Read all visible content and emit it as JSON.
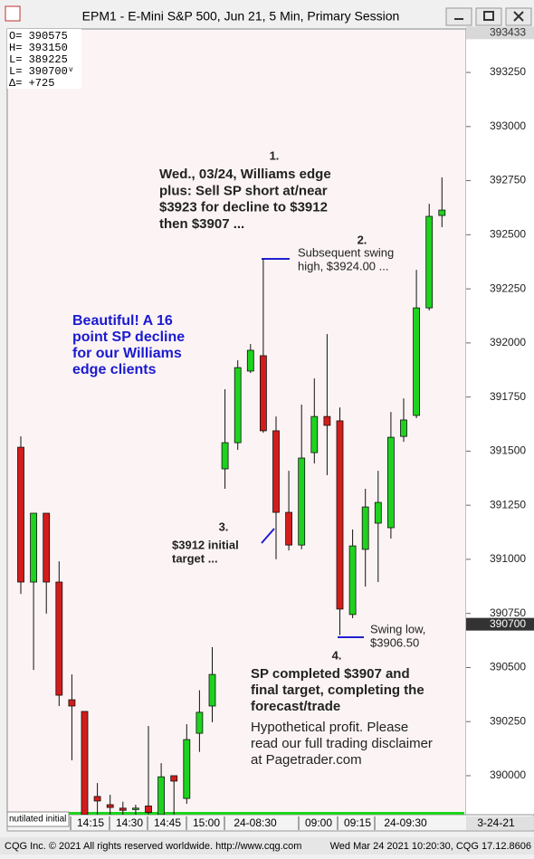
{
  "chart_data": {
    "type": "candlestick",
    "window_title": "EPM1 - E-Mini S&P 500, Jun 21, 5 Min, Primary Session",
    "readout": [
      "O= 390575",
      "H= 393150",
      "L= 389225",
      "L= 390700ᵛ",
      "Δ=     +725"
    ],
    "open": [
      391518,
      390895,
      391213,
      390895,
      390351,
      390297,
      389904,
      389866,
      389850,
      389850,
      389860,
      389820,
      390000,
      389895,
      390196,
      390322,
      391418,
      391539,
      391870,
      391941,
      391594,
      391217,
      391066,
      391493,
      391660,
      391640,
      390745,
      391046,
      391167,
      391146,
      391568,
      391665,
      392162,
      392589
    ],
    "high": [
      391568,
      391213,
      391213,
      390991,
      390468,
      390297,
      389966,
      389912,
      389880,
      389866,
      390230,
      390058,
      390000,
      390238,
      390395,
      390594,
      391786,
      391920,
      391995,
      392388,
      391660,
      391409,
      391715,
      391836,
      392041,
      391702,
      391138,
      391326,
      391409,
      391681,
      391744,
      392338,
      392643,
      392765
    ],
    "low": [
      390840,
      390489,
      390749,
      390322,
      390071,
      389820,
      389820,
      389820,
      389820,
      389820,
      389820,
      389820,
      389820,
      389870,
      390110,
      390247,
      391326,
      391506,
      391861,
      391585,
      391000,
      391041,
      391046,
      391443,
      391389,
      390650,
      390728,
      390874,
      390895,
      391096,
      391543,
      391652,
      392150,
      392535
    ],
    "close": [
      390895,
      391213,
      390895,
      390372,
      390322,
      389820,
      389883,
      389853,
      389840,
      389850,
      389830,
      389995,
      389975,
      390167,
      390293,
      390468,
      391539,
      391886,
      391966,
      391594,
      391217,
      391066,
      391468,
      391660,
      391619,
      390770,
      391062,
      391242,
      391263,
      391564,
      391644,
      392162,
      392585,
      392614
    ],
    "up_color": "#1fd21f",
    "down_color": "#d41c1c",
    "ylim": [
      389820,
      393451
    ],
    "yticks": [
      390000,
      390250,
      390500,
      390750,
      391000,
      391250,
      391500,
      391750,
      392000,
      392250,
      392500,
      392750,
      393000,
      393250
    ],
    "price_markers": [
      393433,
      390700
    ],
    "xticks": [
      "14:15",
      "14:30",
      "14:45",
      "15:00",
      "24-08:30",
      "09:00",
      "09:15",
      "24-09:30"
    ],
    "date_label": "3-24-21",
    "study_label": "nutilated initial",
    "annotations": [
      {
        "number": "1.",
        "lines": [
          "Wed., 03/24, Williams edge",
          "plus: Sell SP short at/near",
          "$3923 for decline to $3912",
          "then $3907 ..."
        ]
      },
      {
        "number": "2.",
        "lines": [
          "Subsequent swing",
          "high, $3924.00 ..."
        ]
      },
      {
        "number": "3.",
        "lines": [
          "$3912 initial",
          "target ..."
        ]
      },
      {
        "number": "4.",
        "lines": [
          "SP completed $3907 and",
          "final target, completing the",
          "forecast/trade"
        ]
      }
    ],
    "swing_low_note": [
      "Swing low,",
      "$3906.50"
    ],
    "highlight_note": [
      "Beautiful! A 16",
      "point SP decline",
      "for our Williams",
      "edge clients"
    ],
    "disclaimer": [
      "Hypothetical profit. Please",
      "read our full trading disclaimer",
      "at Pagetrader.com"
    ],
    "footer_left": "CQG Inc. © 2021 All rights reserved worldwide. http://www.cqg.com",
    "footer_right": "Wed Mar 24 2021 10:20:30, CQG 17.12.8606"
  }
}
